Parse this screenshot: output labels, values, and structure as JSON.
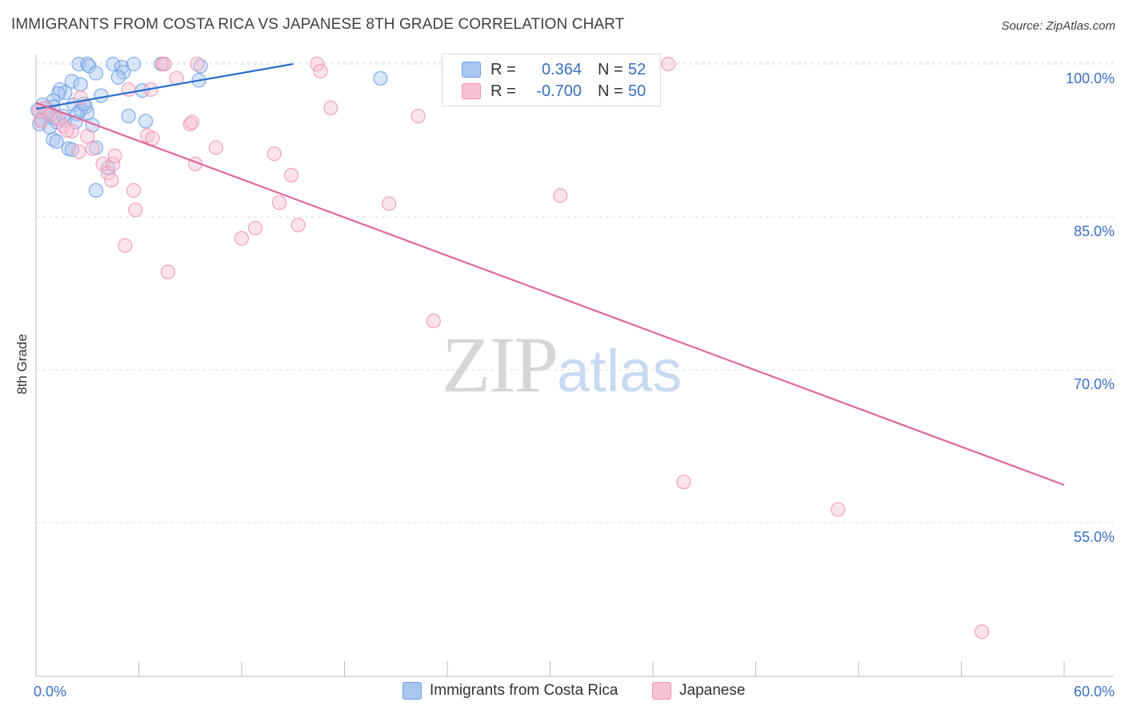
{
  "chart_data": {
    "type": "scatter",
    "title": "IMMIGRANTS FROM COSTA RICA VS JAPANESE 8TH GRADE CORRELATION CHART",
    "source": "Source: ZipAtlas.com",
    "xlabel": "",
    "ylabel": "8th Grade",
    "xlim": [
      0,
      60
    ],
    "ylim": [
      40,
      100
    ],
    "x_tick_labels": [
      "0.0%",
      "60.0%"
    ],
    "x_tick_values": [
      0,
      6,
      12,
      18,
      24,
      30,
      36,
      42,
      48,
      54,
      60
    ],
    "y_ticks": [
      {
        "value": 100,
        "label": "100.0%"
      },
      {
        "value": 85,
        "label": "85.0%"
      },
      {
        "value": 70,
        "label": "70.0%"
      },
      {
        "value": 55,
        "label": "55.0%"
      }
    ],
    "grid": true,
    "legend_position": "top-center",
    "series": [
      {
        "name": "Immigrants from Costa Rica",
        "color": "#6fa0e6",
        "fill": "#a9c6f0",
        "line_color": "#2b6fcf",
        "r_label": "R =",
        "r_value": "0.364",
        "n_label": "N =",
        "n_value": "52",
        "trend": [
          [
            0,
            95.6
          ],
          [
            15,
            100
          ]
        ],
        "points": [
          [
            2.5,
            100
          ],
          [
            3.0,
            100
          ],
          [
            3.1,
            99.8
          ],
          [
            4.5,
            100
          ],
          [
            5.0,
            99.7
          ],
          [
            5.7,
            100
          ],
          [
            7.3,
            100
          ],
          [
            9.6,
            99.8
          ],
          [
            3.5,
            99.1
          ],
          [
            5.1,
            99.2
          ],
          [
            4.8,
            98.7
          ],
          [
            9.5,
            98.4
          ],
          [
            20.1,
            98.6
          ],
          [
            2.1,
            98.3
          ],
          [
            2.6,
            98.0
          ],
          [
            1.4,
            97.5
          ],
          [
            1.7,
            97.2
          ],
          [
            1.3,
            97.1
          ],
          [
            6.2,
            97.4
          ],
          [
            3.8,
            96.9
          ],
          [
            1.0,
            96.4
          ],
          [
            2.2,
            96.0
          ],
          [
            2.9,
            95.8
          ],
          [
            1.0,
            95.8
          ],
          [
            0.6,
            95.6
          ],
          [
            0.1,
            95.5
          ],
          [
            2.6,
            95.5
          ],
          [
            3.0,
            95.2
          ],
          [
            2.4,
            95.1
          ],
          [
            0.5,
            95.0
          ],
          [
            0.8,
            94.8
          ],
          [
            0.3,
            94.6
          ],
          [
            1.7,
            94.5
          ],
          [
            1.2,
            94.3
          ],
          [
            2.3,
            94.3
          ],
          [
            0.2,
            94.1
          ],
          [
            5.4,
            94.9
          ],
          [
            6.4,
            94.4
          ],
          [
            3.3,
            94.0
          ],
          [
            0.8,
            93.8
          ],
          [
            1.0,
            92.6
          ],
          [
            1.2,
            92.4
          ],
          [
            1.9,
            91.7
          ],
          [
            3.5,
            91.8
          ],
          [
            2.1,
            91.6
          ],
          [
            4.2,
            89.8
          ],
          [
            3.5,
            87.6
          ],
          [
            0.4,
            96.0
          ],
          [
            1.1,
            94.7
          ],
          [
            0.7,
            95.2
          ],
          [
            2.8,
            96.1
          ],
          [
            1.6,
            94.9
          ]
        ]
      },
      {
        "name": "Japanese",
        "color": "#f095b1",
        "fill": "#f7c2d2",
        "line_color": "#e0679a",
        "r_label": "R =",
        "r_value": "-0.700",
        "n_label": "N =",
        "n_value": "50",
        "trend": [
          [
            0,
            96.2
          ],
          [
            60,
            58.7
          ]
        ],
        "points": [
          [
            0.2,
            95.4
          ],
          [
            0.3,
            94.4
          ],
          [
            0.5,
            95.7
          ],
          [
            0.9,
            95.1
          ],
          [
            1.3,
            94.6
          ],
          [
            1.6,
            93.9
          ],
          [
            2.1,
            93.4
          ],
          [
            2.6,
            96.7
          ],
          [
            3.0,
            92.9
          ],
          [
            3.3,
            91.7
          ],
          [
            2.5,
            91.4
          ],
          [
            3.9,
            90.2
          ],
          [
            4.2,
            89.3
          ],
          [
            4.4,
            88.6
          ],
          [
            4.5,
            90.2
          ],
          [
            4.6,
            91.0
          ],
          [
            5.4,
            97.5
          ],
          [
            6.5,
            93.0
          ],
          [
            6.8,
            92.7
          ],
          [
            6.7,
            97.5
          ],
          [
            7.4,
            100
          ],
          [
            8.2,
            98.6
          ],
          [
            9.0,
            94.1
          ],
          [
            9.1,
            94.3
          ],
          [
            9.3,
            90.2
          ],
          [
            10.5,
            91.8
          ],
          [
            12.0,
            82.9
          ],
          [
            12.8,
            83.9
          ],
          [
            13.9,
            91.2
          ],
          [
            14.2,
            86.4
          ],
          [
            14.9,
            89.1
          ],
          [
            15.3,
            84.2
          ],
          [
            16.4,
            100
          ],
          [
            16.6,
            99.3
          ],
          [
            17.2,
            95.7
          ],
          [
            20.6,
            86.3
          ],
          [
            22.3,
            94.9
          ],
          [
            23.2,
            74.8
          ],
          [
            30.6,
            87.1
          ],
          [
            36.9,
            100
          ],
          [
            37.8,
            59.0
          ],
          [
            46.8,
            56.3
          ],
          [
            55.2,
            44.3
          ],
          [
            5.2,
            82.2
          ],
          [
            5.8,
            85.7
          ],
          [
            7.7,
            79.6
          ],
          [
            5.7,
            87.6
          ],
          [
            7.5,
            100
          ],
          [
            9.4,
            100
          ],
          [
            1.8,
            93.5
          ]
        ]
      }
    ]
  },
  "watermark": {
    "a": "ZIP",
    "b": "atlas"
  }
}
